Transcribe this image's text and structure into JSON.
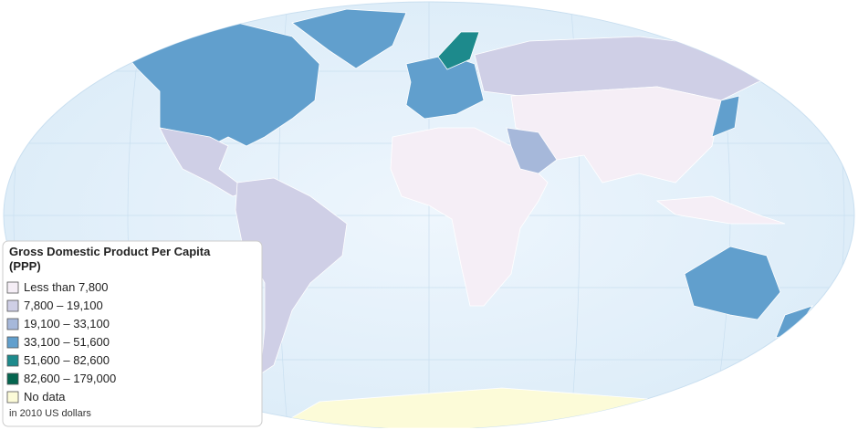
{
  "legend": {
    "title": "Gross Domestic Product Per Capita (PPP)",
    "items": [
      {
        "label": "Less than 7,800",
        "color": "#f5eef6"
      },
      {
        "label": "7,800 – 19,100",
        "color": "#cfcfe6"
      },
      {
        "label": "19,100 – 33,100",
        "color": "#a6b8da"
      },
      {
        "label": "33,100 – 51,600",
        "color": "#619fcd"
      },
      {
        "label": "51,600 – 82,600",
        "color": "#1d8a8c"
      },
      {
        "label": "82,600 – 179,000",
        "color": "#04654f"
      },
      {
        "label": "No data",
        "color": "#fcfbd8"
      }
    ],
    "note": "in 2010 US dollars"
  }
}
